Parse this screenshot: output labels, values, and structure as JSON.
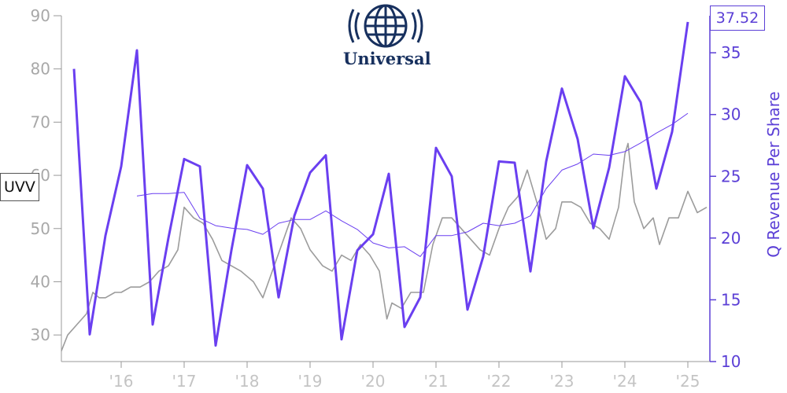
{
  "ticker": "UVV",
  "last_value_label": "37.52",
  "logo_text": "Universal",
  "colors": {
    "price": "#9c9c9c",
    "revenue": "#6a3ff0",
    "revenue_ttm": "#6a3ff0",
    "axis_right": "#5b3fd6",
    "logo": "#17305e"
  },
  "chart_data": {
    "type": "line",
    "title": "",
    "xlabel": "",
    "ylabel_left": "",
    "ylabel_right": "Q Revenue Per Share",
    "x_tick_labels": [
      "'16",
      "'17",
      "'18",
      "'19",
      "'20",
      "'21",
      "'22",
      "'23",
      "'24",
      "'25"
    ],
    "x_tick_years": [
      2016,
      2017,
      2018,
      2019,
      2020,
      2021,
      2022,
      2023,
      2024,
      2025
    ],
    "xlim": [
      2015.05,
      2025.35
    ],
    "ylim_left": [
      25,
      90
    ],
    "y_ticks_left": [
      30,
      40,
      50,
      60,
      70,
      80,
      90
    ],
    "ylim_right": [
      10,
      38
    ],
    "y_ticks_right": [
      10,
      15,
      20,
      25,
      30,
      35
    ],
    "grid": false,
    "series": [
      {
        "name": "UVV",
        "axis": "left",
        "points": [
          [
            2015.05,
            27
          ],
          [
            2015.15,
            30
          ],
          [
            2015.3,
            32
          ],
          [
            2015.45,
            34
          ],
          [
            2015.55,
            38
          ],
          [
            2015.65,
            37
          ],
          [
            2015.75,
            37
          ],
          [
            2015.9,
            38
          ],
          [
            2016.0,
            38
          ],
          [
            2016.15,
            39
          ],
          [
            2016.3,
            39
          ],
          [
            2016.45,
            40
          ],
          [
            2016.6,
            42
          ],
          [
            2016.75,
            43
          ],
          [
            2016.9,
            46
          ],
          [
            2017.0,
            54
          ],
          [
            2017.15,
            52
          ],
          [
            2017.3,
            51
          ],
          [
            2017.45,
            48
          ],
          [
            2017.6,
            44
          ],
          [
            2017.75,
            43
          ],
          [
            2017.9,
            42
          ],
          [
            2018.0,
            41
          ],
          [
            2018.1,
            40
          ],
          [
            2018.25,
            37
          ],
          [
            2018.4,
            42
          ],
          [
            2018.55,
            47
          ],
          [
            2018.7,
            52
          ],
          [
            2018.85,
            50
          ],
          [
            2019.0,
            46
          ],
          [
            2019.2,
            43
          ],
          [
            2019.35,
            42
          ],
          [
            2019.5,
            45
          ],
          [
            2019.65,
            44
          ],
          [
            2019.8,
            47
          ],
          [
            2019.95,
            45
          ],
          [
            2020.1,
            42
          ],
          [
            2020.22,
            33
          ],
          [
            2020.3,
            36
          ],
          [
            2020.45,
            35
          ],
          [
            2020.6,
            38
          ],
          [
            2020.8,
            38
          ],
          [
            2020.95,
            47
          ],
          [
            2021.1,
            52
          ],
          [
            2021.25,
            52
          ],
          [
            2021.4,
            50
          ],
          [
            2021.55,
            48
          ],
          [
            2021.7,
            46
          ],
          [
            2021.85,
            45
          ],
          [
            2022.0,
            50
          ],
          [
            2022.15,
            54
          ],
          [
            2022.3,
            56
          ],
          [
            2022.45,
            61
          ],
          [
            2022.6,
            55
          ],
          [
            2022.75,
            48
          ],
          [
            2022.9,
            50
          ],
          [
            2023.0,
            55
          ],
          [
            2023.15,
            55
          ],
          [
            2023.3,
            54
          ],
          [
            2023.45,
            51
          ],
          [
            2023.6,
            50
          ],
          [
            2023.75,
            48
          ],
          [
            2023.9,
            54
          ],
          [
            2024.0,
            64
          ],
          [
            2024.05,
            66
          ],
          [
            2024.15,
            55
          ],
          [
            2024.3,
            50
          ],
          [
            2024.45,
            52
          ],
          [
            2024.55,
            47
          ],
          [
            2024.7,
            52
          ],
          [
            2024.85,
            52
          ],
          [
            2025.0,
            57
          ],
          [
            2025.15,
            53
          ],
          [
            2025.3,
            54
          ]
        ]
      },
      {
        "name": "Q Revenue Per Share",
        "axis": "right",
        "points": [
          [
            2015.25,
            33.7
          ],
          [
            2015.5,
            12.2
          ],
          [
            2015.75,
            20.2
          ],
          [
            2016.0,
            25.8
          ],
          [
            2016.25,
            35.2
          ],
          [
            2016.5,
            13.0
          ],
          [
            2016.75,
            20.0
          ],
          [
            2017.0,
            26.4
          ],
          [
            2017.25,
            25.8
          ],
          [
            2017.5,
            11.3
          ],
          [
            2017.75,
            19.0
          ],
          [
            2018.0,
            25.9
          ],
          [
            2018.25,
            24.0
          ],
          [
            2018.5,
            15.2
          ],
          [
            2018.75,
            21.8
          ],
          [
            2019.0,
            25.3
          ],
          [
            2019.25,
            26.7
          ],
          [
            2019.5,
            11.8
          ],
          [
            2019.75,
            19.0
          ],
          [
            2020.0,
            20.3
          ],
          [
            2020.25,
            25.2
          ],
          [
            2020.5,
            12.8
          ],
          [
            2020.75,
            15.2
          ],
          [
            2021.0,
            27.3
          ],
          [
            2021.25,
            25.0
          ],
          [
            2021.5,
            14.2
          ],
          [
            2021.75,
            18.5
          ],
          [
            2022.0,
            26.2
          ],
          [
            2022.25,
            26.1
          ],
          [
            2022.5,
            17.3
          ],
          [
            2022.75,
            26.2
          ],
          [
            2023.0,
            32.1
          ],
          [
            2023.25,
            28.0
          ],
          [
            2023.5,
            20.8
          ],
          [
            2023.75,
            25.7
          ],
          [
            2024.0,
            33.1
          ],
          [
            2024.25,
            31.0
          ],
          [
            2024.5,
            24.0
          ],
          [
            2024.75,
            28.6
          ],
          [
            2025.0,
            37.5
          ]
        ]
      },
      {
        "name": "Q Revenue Per Share TTM",
        "axis": "right",
        "points": [
          [
            2016.25,
            23.4
          ],
          [
            2016.5,
            23.6
          ],
          [
            2016.75,
            23.6
          ],
          [
            2017.0,
            23.7
          ],
          [
            2017.25,
            21.6
          ],
          [
            2017.5,
            21.0
          ],
          [
            2017.75,
            20.8
          ],
          [
            2018.0,
            20.7
          ],
          [
            2018.25,
            20.3
          ],
          [
            2018.5,
            21.2
          ],
          [
            2018.75,
            21.5
          ],
          [
            2019.0,
            21.5
          ],
          [
            2019.25,
            22.2
          ],
          [
            2019.5,
            21.4
          ],
          [
            2019.75,
            20.7
          ],
          [
            2020.0,
            19.6
          ],
          [
            2020.25,
            19.2
          ],
          [
            2020.5,
            19.3
          ],
          [
            2020.75,
            18.5
          ],
          [
            2021.0,
            20.2
          ],
          [
            2021.25,
            20.2
          ],
          [
            2021.5,
            20.5
          ],
          [
            2021.75,
            21.2
          ],
          [
            2022.0,
            21.0
          ],
          [
            2022.25,
            21.2
          ],
          [
            2022.5,
            21.8
          ],
          [
            2022.75,
            24.0
          ],
          [
            2023.0,
            25.5
          ],
          [
            2023.25,
            26.0
          ],
          [
            2023.5,
            26.8
          ],
          [
            2023.75,
            26.7
          ],
          [
            2024.0,
            27.0
          ],
          [
            2024.25,
            27.7
          ],
          [
            2024.5,
            28.5
          ],
          [
            2024.75,
            29.2
          ],
          [
            2025.0,
            30.1
          ]
        ]
      }
    ]
  }
}
